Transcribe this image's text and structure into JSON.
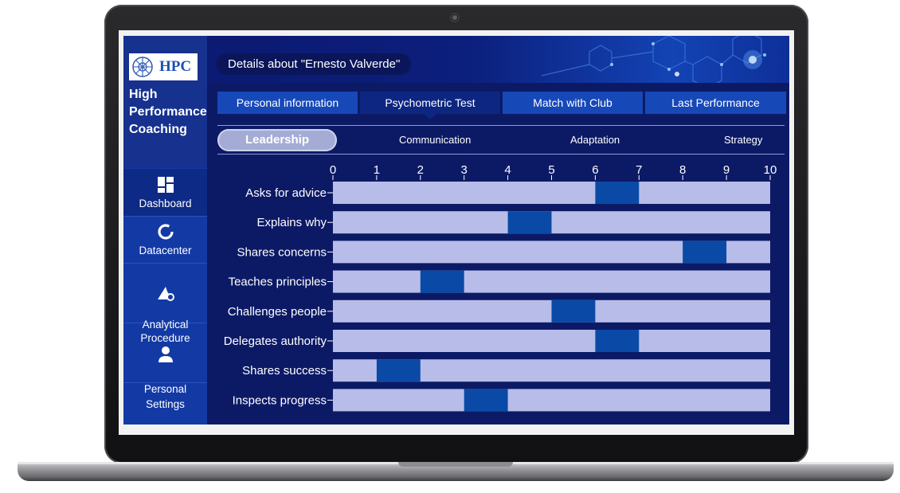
{
  "sidebar": {
    "logo_text": "HPC",
    "brand_name": "High\nPerformance\nCoaching",
    "items": [
      {
        "label": "Dashboard",
        "icon": "dashboard-icon"
      },
      {
        "label": "Datacenter",
        "icon": "donut-icon"
      },
      {
        "label": "Analytical\nProcedure",
        "icon": "analytics-gear-icon"
      },
      {
        "label": "Personal\nSettings",
        "icon": "user-icon"
      }
    ]
  },
  "header": {
    "title": "Details about \"Ernesto Valverde\""
  },
  "tabs": [
    {
      "label": "Personal information"
    },
    {
      "label": "Psychometric Test",
      "active": true
    },
    {
      "label": "Match with Club"
    },
    {
      "label": "Last Performance"
    }
  ],
  "subtabs": [
    {
      "label": "Leadership",
      "active": true
    },
    {
      "label": "Communication"
    },
    {
      "label": "Adaptation"
    },
    {
      "label": "Strategy"
    }
  ],
  "chart_data": {
    "type": "bar",
    "orientation": "horizontal",
    "xlim": [
      0,
      10
    ],
    "xticks": [
      0,
      1,
      2,
      3,
      4,
      5,
      6,
      7,
      8,
      9,
      10
    ],
    "categories": [
      "Asks for advice",
      "Explains why",
      "Shares concerns",
      "Teaches principles",
      "Challenges people",
      "Delegates authority",
      "Shares success",
      "Inspects progress"
    ],
    "series": [
      {
        "ranges": [
          [
            6,
            7
          ],
          [
            4,
            5
          ],
          [
            8,
            9
          ],
          [
            2,
            3
          ],
          [
            5,
            6
          ],
          [
            6,
            7
          ],
          [
            1,
            2
          ],
          [
            3,
            4
          ]
        ]
      }
    ],
    "colors": {
      "track": "#b7bde8",
      "highlight": "#0a4aa6"
    }
  }
}
